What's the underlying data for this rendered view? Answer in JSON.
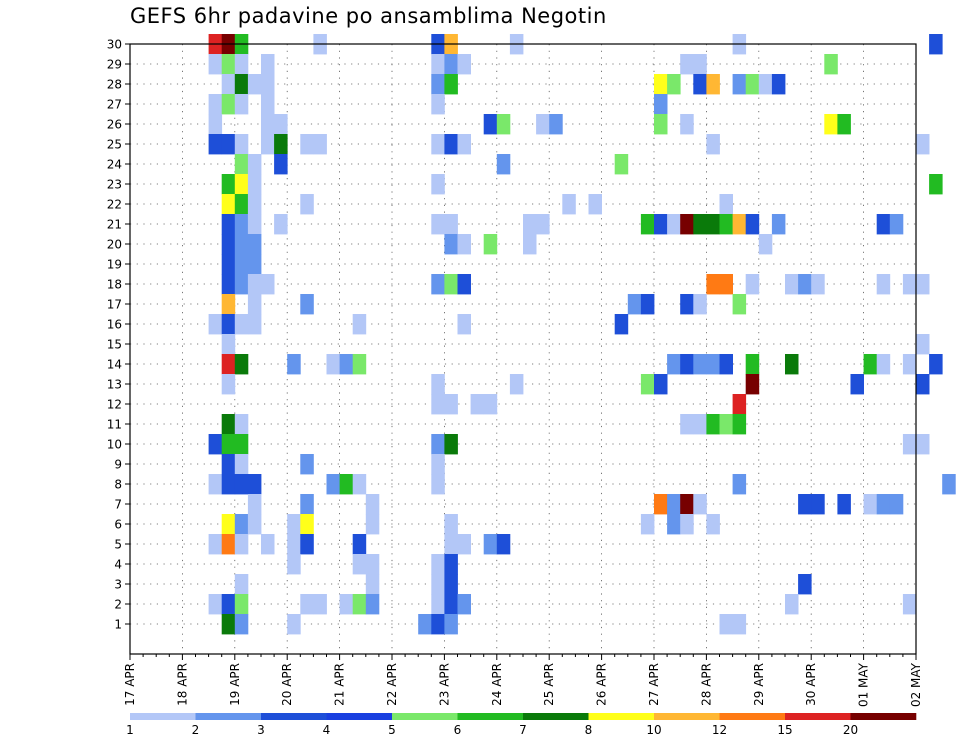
{
  "chart_data": {
    "type": "heatmap",
    "title": "GEFS 6hr padavine po ansamblima Negotin",
    "x_tick_labels": [
      "17 APR",
      "18 APR",
      "19 APR",
      "20 APR",
      "21 APR",
      "22 APR",
      "23 APR",
      "24 APR",
      "25 APR",
      "26 APR",
      "27 APR",
      "28 APR",
      "29 APR",
      "30 APR",
      "01 MAY",
      "02 MAY"
    ],
    "x_steps_per_day": 4,
    "y_tick_labels": [
      "1",
      "2",
      "3",
      "4",
      "5",
      "6",
      "7",
      "8",
      "9",
      "10",
      "11",
      "12",
      "13",
      "14",
      "15",
      "16",
      "17",
      "18",
      "19",
      "20",
      "21",
      "22",
      "23",
      "24",
      "25",
      "26",
      "27",
      "28",
      "29",
      "30"
    ],
    "y_members": [
      1,
      30
    ],
    "grid": true,
    "color_scale": {
      "labels": [
        "1",
        "2",
        "3",
        "4",
        "5",
        "6",
        "7",
        "8",
        "10",
        "12",
        "15",
        "20"
      ],
      "colors": [
        "#b3c7f7",
        "#6495ed",
        "#1e4fd8",
        "#1a3fe0",
        "#7ae86a",
        "#22bb22",
        "#0a7a0a",
        "#ffff1a",
        "#ffb733",
        "#ff7a14",
        "#dd2222",
        "#770000"
      ],
      "legend_position": "bottom"
    },
    "cells": [
      [
        6,
        30,
        10
      ],
      [
        7,
        30,
        11
      ],
      [
        8,
        30,
        5
      ],
      [
        14,
        30,
        0
      ],
      [
        23,
        30,
        2
      ],
      [
        24,
        30,
        8
      ],
      [
        29,
        30,
        0
      ],
      [
        46,
        30,
        0
      ],
      [
        61,
        30,
        2
      ],
      [
        6,
        29,
        0
      ],
      [
        7,
        29,
        4
      ],
      [
        8,
        29,
        0
      ],
      [
        10,
        29,
        0
      ],
      [
        23,
        29,
        0
      ],
      [
        24,
        29,
        1
      ],
      [
        25,
        29,
        0
      ],
      [
        42,
        29,
        0
      ],
      [
        43,
        29,
        0
      ],
      [
        53,
        29,
        4
      ],
      [
        7,
        28,
        0
      ],
      [
        8,
        28,
        6
      ],
      [
        9,
        28,
        0
      ],
      [
        10,
        28,
        0
      ],
      [
        23,
        28,
        1
      ],
      [
        24,
        28,
        5
      ],
      [
        40,
        28,
        7
      ],
      [
        41,
        28,
        4
      ],
      [
        43,
        28,
        2
      ],
      [
        44,
        28,
        8
      ],
      [
        46,
        28,
        1
      ],
      [
        47,
        28,
        4
      ],
      [
        48,
        28,
        0
      ],
      [
        49,
        28,
        2
      ],
      [
        6,
        27,
        0
      ],
      [
        7,
        27,
        4
      ],
      [
        8,
        27,
        0
      ],
      [
        10,
        27,
        0
      ],
      [
        23,
        27,
        0
      ],
      [
        40,
        27,
        1
      ],
      [
        6,
        26,
        0
      ],
      [
        10,
        26,
        0
      ],
      [
        11,
        26,
        0
      ],
      [
        27,
        26,
        2
      ],
      [
        28,
        26,
        4
      ],
      [
        31,
        26,
        0
      ],
      [
        32,
        26,
        1
      ],
      [
        40,
        26,
        4
      ],
      [
        42,
        26,
        0
      ],
      [
        53,
        26,
        7
      ],
      [
        54,
        26,
        5
      ],
      [
        6,
        25,
        2
      ],
      [
        7,
        25,
        2
      ],
      [
        8,
        25,
        0
      ],
      [
        10,
        25,
        0
      ],
      [
        11,
        25,
        6
      ],
      [
        13,
        25,
        0
      ],
      [
        14,
        25,
        0
      ],
      [
        23,
        25,
        0
      ],
      [
        24,
        25,
        2
      ],
      [
        25,
        25,
        0
      ],
      [
        44,
        25,
        0
      ],
      [
        60,
        25,
        0
      ],
      [
        8,
        24,
        4
      ],
      [
        9,
        24,
        0
      ],
      [
        11,
        24,
        2
      ],
      [
        28,
        24,
        1
      ],
      [
        37,
        24,
        4
      ],
      [
        7,
        23,
        5
      ],
      [
        8,
        23,
        7
      ],
      [
        9,
        23,
        0
      ],
      [
        23,
        23,
        0
      ],
      [
        61,
        23,
        5
      ],
      [
        7,
        22,
        7
      ],
      [
        8,
        22,
        5
      ],
      [
        9,
        22,
        0
      ],
      [
        13,
        22,
        0
      ],
      [
        33,
        22,
        0
      ],
      [
        35,
        22,
        0
      ],
      [
        45,
        22,
        0
      ],
      [
        7,
        21,
        2
      ],
      [
        8,
        21,
        1
      ],
      [
        9,
        21,
        0
      ],
      [
        11,
        21,
        0
      ],
      [
        23,
        21,
        0
      ],
      [
        24,
        21,
        0
      ],
      [
        30,
        21,
        0
      ],
      [
        31,
        21,
        0
      ],
      [
        39,
        21,
        5
      ],
      [
        40,
        21,
        2
      ],
      [
        41,
        21,
        0
      ],
      [
        42,
        21,
        11
      ],
      [
        43,
        21,
        6
      ],
      [
        44,
        21,
        6
      ],
      [
        45,
        21,
        5
      ],
      [
        46,
        21,
        8
      ],
      [
        47,
        21,
        2
      ],
      [
        49,
        21,
        1
      ],
      [
        57,
        21,
        2
      ],
      [
        58,
        21,
        1
      ],
      [
        7,
        20,
        2
      ],
      [
        8,
        20,
        1
      ],
      [
        9,
        20,
        1
      ],
      [
        24,
        20,
        1
      ],
      [
        25,
        20,
        0
      ],
      [
        27,
        20,
        4
      ],
      [
        30,
        20,
        0
      ],
      [
        48,
        20,
        0
      ],
      [
        7,
        19,
        2
      ],
      [
        8,
        19,
        1
      ],
      [
        9,
        19,
        1
      ],
      [
        7,
        18,
        2
      ],
      [
        8,
        18,
        1
      ],
      [
        9,
        18,
        0
      ],
      [
        10,
        18,
        0
      ],
      [
        23,
        18,
        1
      ],
      [
        24,
        18,
        4
      ],
      [
        25,
        18,
        2
      ],
      [
        44,
        18,
        9
      ],
      [
        45,
        18,
        9
      ],
      [
        47,
        18,
        0
      ],
      [
        50,
        18,
        0
      ],
      [
        51,
        18,
        1
      ],
      [
        52,
        18,
        0
      ],
      [
        57,
        18,
        0
      ],
      [
        59,
        18,
        0
      ],
      [
        60,
        18,
        0
      ],
      [
        7,
        17,
        8
      ],
      [
        9,
        17,
        0
      ],
      [
        13,
        17,
        1
      ],
      [
        38,
        17,
        1
      ],
      [
        39,
        17,
        2
      ],
      [
        42,
        17,
        2
      ],
      [
        43,
        17,
        0
      ],
      [
        46,
        17,
        4
      ],
      [
        6,
        16,
        0
      ],
      [
        7,
        16,
        2
      ],
      [
        8,
        16,
        0
      ],
      [
        9,
        16,
        0
      ],
      [
        17,
        16,
        0
      ],
      [
        25,
        16,
        0
      ],
      [
        37,
        16,
        2
      ],
      [
        7,
        15,
        0
      ],
      [
        60,
        15,
        0
      ],
      [
        7,
        14,
        10
      ],
      [
        8,
        14,
        6
      ],
      [
        12,
        14,
        1
      ],
      [
        15,
        14,
        0
      ],
      [
        16,
        14,
        1
      ],
      [
        17,
        14,
        4
      ],
      [
        41,
        14,
        1
      ],
      [
        42,
        14,
        2
      ],
      [
        43,
        14,
        1
      ],
      [
        44,
        14,
        1
      ],
      [
        45,
        14,
        2
      ],
      [
        47,
        14,
        5
      ],
      [
        50,
        14,
        6
      ],
      [
        56,
        14,
        5
      ],
      [
        57,
        14,
        0
      ],
      [
        59,
        14,
        0
      ],
      [
        61,
        14,
        2
      ],
      [
        7,
        13,
        0
      ],
      [
        23,
        13,
        0
      ],
      [
        29,
        13,
        0
      ],
      [
        39,
        13,
        4
      ],
      [
        40,
        13,
        2
      ],
      [
        47,
        13,
        11
      ],
      [
        55,
        13,
        2
      ],
      [
        60,
        13,
        2
      ],
      [
        23,
        12,
        0
      ],
      [
        24,
        12,
        0
      ],
      [
        26,
        12,
        0
      ],
      [
        27,
        12,
        0
      ],
      [
        46,
        12,
        10
      ],
      [
        7,
        11,
        6
      ],
      [
        8,
        11,
        0
      ],
      [
        42,
        11,
        0
      ],
      [
        43,
        11,
        0
      ],
      [
        44,
        11,
        5
      ],
      [
        45,
        11,
        4
      ],
      [
        46,
        11,
        5
      ],
      [
        6,
        10,
        2
      ],
      [
        7,
        10,
        5
      ],
      [
        8,
        10,
        5
      ],
      [
        23,
        10,
        1
      ],
      [
        24,
        10,
        6
      ],
      [
        59,
        10,
        0
      ],
      [
        60,
        10,
        0
      ],
      [
        7,
        9,
        2
      ],
      [
        8,
        9,
        0
      ],
      [
        13,
        9,
        1
      ],
      [
        23,
        9,
        0
      ],
      [
        6,
        8,
        0
      ],
      [
        7,
        8,
        2
      ],
      [
        8,
        8,
        2
      ],
      [
        9,
        8,
        2
      ],
      [
        15,
        8,
        1
      ],
      [
        16,
        8,
        5
      ],
      [
        17,
        8,
        0
      ],
      [
        23,
        8,
        0
      ],
      [
        46,
        8,
        1
      ],
      [
        62,
        8,
        1
      ],
      [
        9,
        7,
        0
      ],
      [
        13,
        7,
        1
      ],
      [
        18,
        7,
        0
      ],
      [
        40,
        7,
        9
      ],
      [
        41,
        7,
        1
      ],
      [
        42,
        7,
        11
      ],
      [
        43,
        7,
        0
      ],
      [
        51,
        7,
        2
      ],
      [
        52,
        7,
        2
      ],
      [
        54,
        7,
        2
      ],
      [
        56,
        7,
        0
      ],
      [
        57,
        7,
        1
      ],
      [
        58,
        7,
        1
      ],
      [
        7,
        6,
        7
      ],
      [
        8,
        6,
        1
      ],
      [
        9,
        6,
        0
      ],
      [
        12,
        6,
        0
      ],
      [
        13,
        6,
        7
      ],
      [
        18,
        6,
        0
      ],
      [
        24,
        6,
        0
      ],
      [
        39,
        6,
        0
      ],
      [
        41,
        6,
        1
      ],
      [
        42,
        6,
        0
      ],
      [
        44,
        6,
        0
      ],
      [
        6,
        5,
        0
      ],
      [
        7,
        5,
        9
      ],
      [
        8,
        5,
        0
      ],
      [
        10,
        5,
        0
      ],
      [
        12,
        5,
        0
      ],
      [
        13,
        5,
        2
      ],
      [
        17,
        5,
        2
      ],
      [
        24,
        5,
        0
      ],
      [
        25,
        5,
        0
      ],
      [
        27,
        5,
        1
      ],
      [
        28,
        5,
        2
      ],
      [
        12,
        4,
        0
      ],
      [
        17,
        4,
        0
      ],
      [
        18,
        4,
        0
      ],
      [
        23,
        4,
        0
      ],
      [
        24,
        4,
        2
      ],
      [
        8,
        3,
        0
      ],
      [
        18,
        3,
        0
      ],
      [
        23,
        3,
        0
      ],
      [
        24,
        3,
        2
      ],
      [
        51,
        3,
        2
      ],
      [
        6,
        2,
        0
      ],
      [
        7,
        2,
        2
      ],
      [
        8,
        2,
        4
      ],
      [
        13,
        2,
        0
      ],
      [
        14,
        2,
        0
      ],
      [
        16,
        2,
        0
      ],
      [
        17,
        2,
        4
      ],
      [
        18,
        2,
        1
      ],
      [
        23,
        2,
        0
      ],
      [
        24,
        2,
        2
      ],
      [
        25,
        2,
        1
      ],
      [
        50,
        2,
        0
      ],
      [
        59,
        2,
        0
      ],
      [
        7,
        1,
        6
      ],
      [
        8,
        1,
        1
      ],
      [
        12,
        1,
        0
      ],
      [
        22,
        1,
        1
      ],
      [
        23,
        1,
        2
      ],
      [
        24,
        1,
        1
      ],
      [
        45,
        1,
        0
      ],
      [
        46,
        1,
        0
      ]
    ]
  }
}
